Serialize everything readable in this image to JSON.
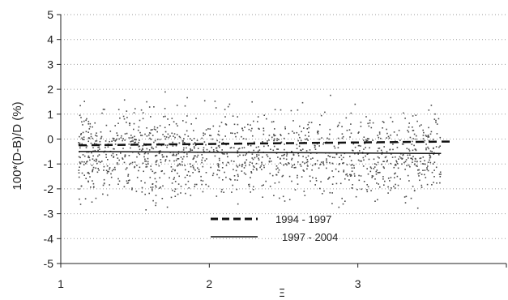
{
  "chart_data": {
    "type": "scatter",
    "title": "",
    "xlabel": "Ξ",
    "ylabel": "100*(D-B)/D   (%)",
    "xlim": [
      1,
      4
    ],
    "ylim": [
      -5,
      5
    ],
    "x_ticks": [
      "1",
      "2",
      "3"
    ],
    "y_ticks": [
      "5",
      "4",
      "3",
      "2",
      "1",
      "0",
      "-1",
      "-2",
      "-3",
      "-4",
      "-5"
    ],
    "grid": "horizontal dotted",
    "legend_position": "bottom-center",
    "scatter": {
      "x_range": [
        1.12,
        3.56
      ],
      "y_mean": -0.6,
      "y_spread": 0.85,
      "count": 1400,
      "color": "#4a4a4a"
    },
    "series": [
      {
        "name": "1994 - 1997",
        "style": "dashed",
        "x": [
          1.12,
          3.62
        ],
        "y": [
          -0.25,
          -0.1
        ]
      },
      {
        "name": "1997 - 2004",
        "style": "solid",
        "x": [
          1.12,
          3.56
        ],
        "y": [
          -0.5,
          -0.58
        ]
      }
    ]
  }
}
